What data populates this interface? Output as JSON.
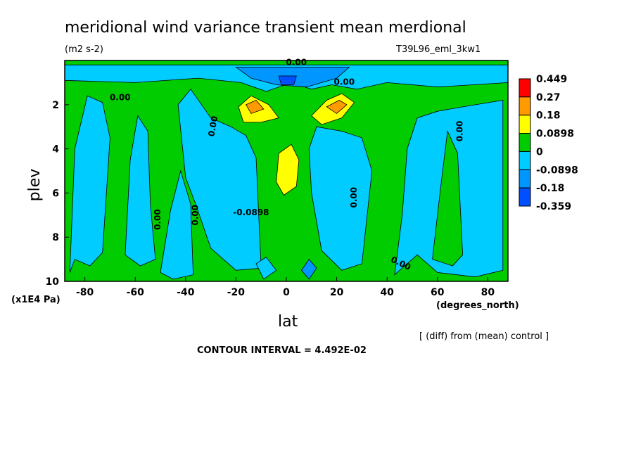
{
  "chart_data": {
    "type": "heatmap",
    "title": "meridional wind variance transient mean merdional",
    "units": "(m2 s-2)",
    "experiment": "T39L96_eml_3kw1",
    "xlabel": "lat",
    "x_units": "(degrees_north)",
    "ylabel": "plev",
    "y_units": "(x1E4 Pa)",
    "x_ticks": [
      -80,
      -60,
      -40,
      -20,
      0,
      20,
      40,
      60,
      80
    ],
    "y_ticks": [
      2,
      4,
      6,
      8,
      10
    ],
    "xlim": [
      -88,
      88
    ],
    "ylim": [
      10,
      0
    ],
    "diff_note": "[ (diff) from (mean) control ]",
    "contour_interval": "CONTOUR INTERVAL = 4.492E-02",
    "contour_labels": [
      "0.00",
      "0.00",
      "0.00",
      "0.00",
      "0.00",
      "0.00",
      "0.00",
      "0.00",
      "0.00",
      "-0.0898"
    ],
    "colorbar": {
      "labels": [
        "0.449",
        "0.27",
        "0.18",
        "0.0898",
        "0",
        "-0.0898",
        "-0.18",
        "-0.359"
      ],
      "colors": [
        "#ff0000",
        "#ff9a00",
        "#ffff00",
        "#00cc00",
        "#00ccff",
        "#0096ff",
        "#0050ff"
      ]
    },
    "colors": {
      "positive_small": "#00cc00",
      "negative_small": "#00ccff",
      "negative_mid": "#0096ff",
      "negative_large": "#0050ff",
      "positive_mid": "#ffff00",
      "positive_high": "#ff9a00"
    },
    "regions": [
      {
        "name": "sh-neg-band",
        "level": "negative_small",
        "pts": [
          [
            -86,
            9.6
          ],
          [
            -84,
            4.0
          ],
          [
            -79,
            1.6
          ],
          [
            -73,
            1.9
          ],
          [
            -70,
            3.5
          ],
          [
            -73,
            8.7
          ],
          [
            -78,
            9.3
          ],
          [
            -84,
            9.0
          ]
        ]
      },
      {
        "name": "sh-neg-band-2",
        "level": "negative_small",
        "pts": [
          [
            -64,
            8.8
          ],
          [
            -62,
            4.5
          ],
          [
            -59,
            2.5
          ],
          [
            -55,
            3.2
          ],
          [
            -54,
            6.5
          ],
          [
            -52,
            9.0
          ],
          [
            -58,
            9.3
          ]
        ]
      },
      {
        "name": "sh-neg-lower",
        "level": "negative_small",
        "pts": [
          [
            -50,
            9.6
          ],
          [
            -46,
            6.8
          ],
          [
            -42,
            5.0
          ],
          [
            -38,
            6.5
          ],
          [
            -37,
            9.7
          ],
          [
            -45,
            9.9
          ]
        ]
      },
      {
        "name": "sh-neg-mid",
        "level": "negative_small",
        "pts": [
          [
            -40,
            5.3
          ],
          [
            -43,
            2.0
          ],
          [
            -38,
            1.3
          ],
          [
            -30,
            2.6
          ],
          [
            -22,
            3.0
          ],
          [
            -16,
            3.4
          ],
          [
            -12,
            4.4
          ],
          [
            -10,
            9.4
          ],
          [
            -20,
            9.5
          ],
          [
            -30,
            8.5
          ],
          [
            -36,
            6.5
          ]
        ]
      },
      {
        "name": "top-neg",
        "level": "negative_small",
        "pts": [
          [
            -88,
            0.2
          ],
          [
            88,
            0.2
          ],
          [
            88,
            1.0
          ],
          [
            60,
            1.2
          ],
          [
            40,
            1.0
          ],
          [
            28,
            1.3
          ],
          [
            18,
            1.1
          ],
          [
            10,
            1.3
          ],
          [
            2,
            1.0
          ],
          [
            -8,
            1.4
          ],
          [
            -18,
            1.0
          ],
          [
            -35,
            0.8
          ],
          [
            -60,
            1.0
          ],
          [
            -88,
            0.9
          ]
        ]
      },
      {
        "name": "top-neg-mid",
        "level": "negative_mid",
        "pts": [
          [
            -20,
            0.3
          ],
          [
            25,
            0.3
          ],
          [
            20,
            0.8
          ],
          [
            8,
            1.2
          ],
          [
            -4,
            1.1
          ],
          [
            -14,
            0.8
          ]
        ]
      },
      {
        "name": "top-neg-core",
        "level": "negative_large",
        "pts": [
          [
            -3,
            0.7
          ],
          [
            4,
            0.7
          ],
          [
            3,
            1.1
          ],
          [
            -2,
            1.1
          ]
        ]
      },
      {
        "name": "nh-neg-mid",
        "level": "negative_small",
        "pts": [
          [
            12,
            3.0
          ],
          [
            22,
            3.2
          ],
          [
            30,
            3.5
          ],
          [
            34,
            5.0
          ],
          [
            30,
            9.2
          ],
          [
            22,
            9.5
          ],
          [
            14,
            8.6
          ],
          [
            10,
            6.0
          ],
          [
            9,
            4.0
          ]
        ]
      },
      {
        "name": "nh-neg-band",
        "level": "negative_small",
        "pts": [
          [
            43,
            9.7
          ],
          [
            46,
            7.0
          ],
          [
            48,
            4.0
          ],
          [
            52,
            2.6
          ],
          [
            60,
            2.3
          ],
          [
            70,
            2.1
          ],
          [
            86,
            1.8
          ],
          [
            86,
            9.5
          ],
          [
            75,
            9.8
          ],
          [
            60,
            9.6
          ],
          [
            52,
            8.8
          ]
        ]
      },
      {
        "name": "nh-pos-island",
        "level": "positive_small",
        "pts": [
          [
            58,
            9.0
          ],
          [
            61,
            6.0
          ],
          [
            64,
            3.2
          ],
          [
            68,
            4.2
          ],
          [
            70,
            8.8
          ],
          [
            66,
            9.3
          ]
        ]
      },
      {
        "name": "sh-pos-jet",
        "level": "positive_mid",
        "pts": [
          [
            -19,
            2.1
          ],
          [
            -14,
            1.6
          ],
          [
            -7,
            2.0
          ],
          [
            -3,
            2.6
          ],
          [
            -10,
            2.8
          ],
          [
            -17,
            2.8
          ]
        ]
      },
      {
        "name": "nh-pos-jet",
        "level": "positive_mid",
        "pts": [
          [
            10,
            2.5
          ],
          [
            16,
            1.8
          ],
          [
            22,
            1.5
          ],
          [
            27,
            1.9
          ],
          [
            22,
            2.6
          ],
          [
            14,
            2.9
          ]
        ]
      },
      {
        "name": "nh-pos-core",
        "level": "positive_high",
        "pts": [
          [
            16,
            2.1
          ],
          [
            21,
            1.8
          ],
          [
            24,
            2.0
          ],
          [
            20,
            2.4
          ]
        ]
      },
      {
        "name": "sh-pos-core",
        "level": "positive_high",
        "pts": [
          [
            -16,
            2.0
          ],
          [
            -12,
            1.8
          ],
          [
            -9,
            2.2
          ],
          [
            -14,
            2.4
          ]
        ]
      },
      {
        "name": "eq-pos",
        "level": "positive_mid",
        "pts": [
          [
            -4,
            5.5
          ],
          [
            -3,
            4.2
          ],
          [
            2,
            3.8
          ],
          [
            5,
            4.5
          ],
          [
            4,
            5.7
          ],
          [
            -1,
            6.1
          ]
        ]
      },
      {
        "name": "lower-neg-1",
        "level": "negative_mid",
        "pts": [
          [
            6,
            9.5
          ],
          [
            9,
            9.0
          ],
          [
            12,
            9.4
          ],
          [
            9,
            9.9
          ]
        ]
      },
      {
        "name": "lower-neg-2",
        "level": "negative_small",
        "pts": [
          [
            -12,
            9.2
          ],
          [
            -8,
            8.9
          ],
          [
            -4,
            9.5
          ],
          [
            -9,
            9.9
          ]
        ]
      }
    ]
  }
}
